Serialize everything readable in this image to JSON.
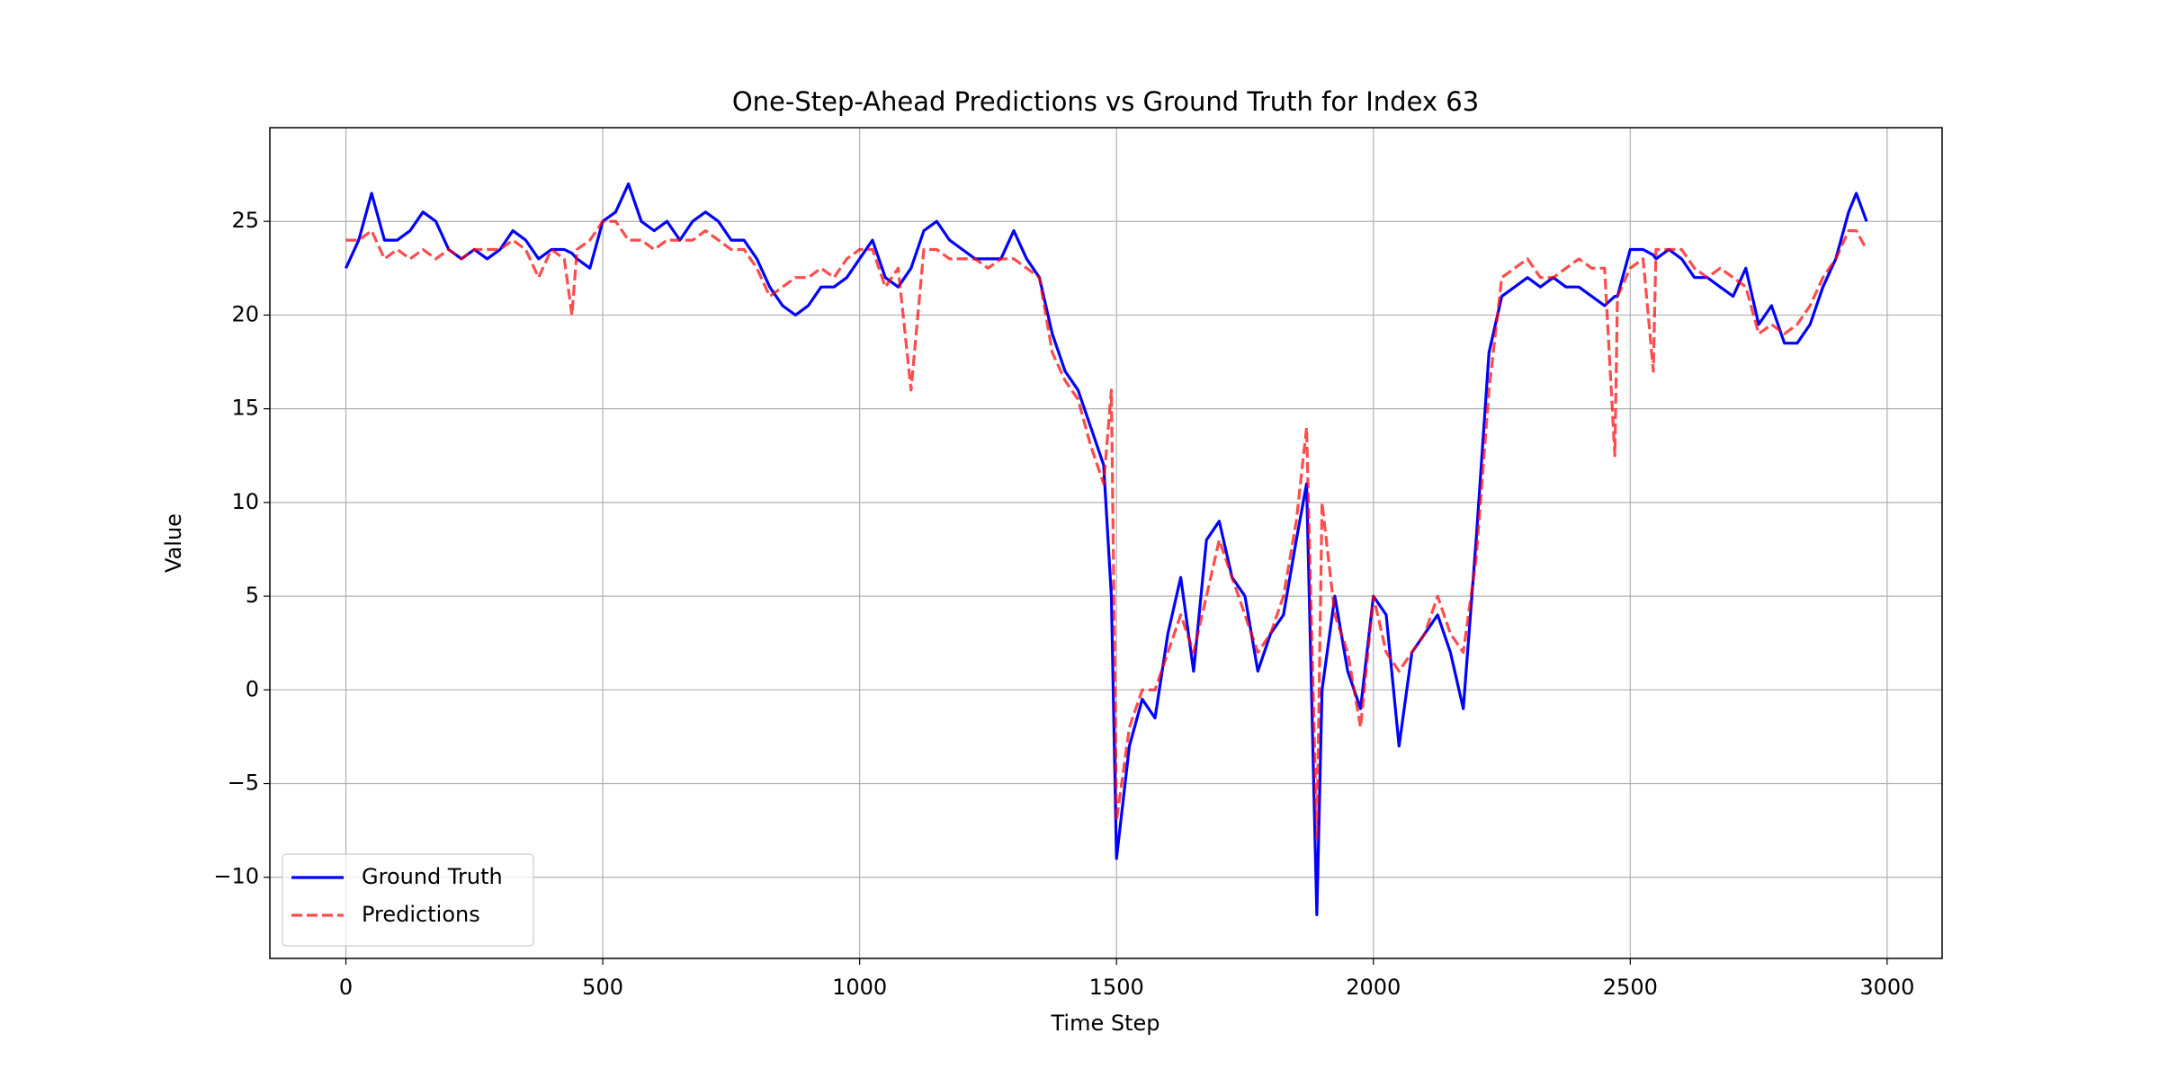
{
  "chart_data": {
    "type": "line",
    "title": "One-Step-Ahead Predictions vs Ground Truth for Index 63",
    "xlabel": "Time Step",
    "ylabel": "Value",
    "x": [
      0,
      25,
      50,
      75,
      100,
      125,
      150,
      175,
      200,
      225,
      250,
      275,
      300,
      325,
      350,
      375,
      400,
      425,
      440,
      450,
      475,
      500,
      525,
      550,
      575,
      600,
      625,
      650,
      675,
      700,
      725,
      750,
      775,
      800,
      825,
      850,
      875,
      900,
      925,
      950,
      975,
      1000,
      1025,
      1050,
      1075,
      1100,
      1125,
      1150,
      1175,
      1200,
      1225,
      1250,
      1275,
      1300,
      1325,
      1350,
      1375,
      1400,
      1425,
      1450,
      1475,
      1490,
      1500,
      1525,
      1550,
      1575,
      1600,
      1625,
      1650,
      1675,
      1700,
      1725,
      1750,
      1775,
      1800,
      1825,
      1850,
      1870,
      1890,
      1900,
      1925,
      1950,
      1975,
      2000,
      2025,
      2050,
      2075,
      2100,
      2125,
      2150,
      2175,
      2200,
      2225,
      2250,
      2275,
      2300,
      2325,
      2350,
      2375,
      2400,
      2425,
      2450,
      2470,
      2475,
      2500,
      2525,
      2545,
      2550,
      2575,
      2600,
      2625,
      2650,
      2675,
      2700,
      2725,
      2750,
      2775,
      2800,
      2825,
      2850,
      2875,
      2900,
      2925,
      2940,
      2960
    ],
    "series": [
      {
        "name": "Ground Truth",
        "color": "#0000ff",
        "dashed": false,
        "values": [
          22.5,
          24,
          26.5,
          24,
          24,
          24.5,
          25.5,
          25,
          23.5,
          23,
          23.5,
          23,
          23.5,
          24.5,
          24,
          23,
          23.5,
          23.5,
          23.3,
          23,
          22.5,
          25,
          25.5,
          27,
          25,
          24.5,
          25,
          24,
          25,
          25.5,
          25,
          24,
          24,
          23,
          21.5,
          20.5,
          20,
          20.5,
          21.5,
          21.5,
          22,
          23,
          24,
          22,
          21.5,
          22.5,
          24.5,
          25,
          24,
          23.5,
          23,
          23,
          23,
          24.5,
          23,
          22,
          19,
          17,
          16,
          14,
          12,
          5,
          -9,
          -3,
          -0.5,
          -1.5,
          3,
          6,
          1,
          8,
          9,
          6,
          5,
          1,
          3,
          4,
          8,
          11,
          -12,
          0,
          5,
          1,
          -1,
          5,
          4,
          -3,
          2,
          3,
          4,
          2,
          -1,
          8,
          18,
          21,
          21.5,
          22,
          21.5,
          22,
          21.5,
          21.5,
          21,
          20.5,
          21,
          21,
          23.5,
          23.5,
          23.2,
          23,
          23.5,
          23,
          22,
          22,
          21.5,
          21,
          22.5,
          19.5,
          20.5,
          18.5,
          18.5,
          19.5,
          21.5,
          23,
          25.5,
          26.5,
          25
        ]
      },
      {
        "name": "Predictions",
        "color": "#ff0000",
        "dashed": true,
        "values": [
          24,
          24,
          24.5,
          23,
          23.5,
          23,
          23.5,
          23,
          23.5,
          23,
          23.5,
          23.5,
          23.5,
          24,
          23.5,
          22,
          23.5,
          23,
          20,
          23.5,
          24,
          25,
          25,
          24,
          24,
          23.5,
          24,
          24,
          24,
          24.5,
          24,
          23.5,
          23.5,
          22.5,
          21,
          21.5,
          22,
          22,
          22.5,
          22,
          23,
          23.5,
          23.5,
          21.5,
          22.5,
          16,
          23.5,
          23.5,
          23,
          23,
          23,
          22.5,
          23,
          23,
          22.5,
          22,
          18,
          16.5,
          15.5,
          13,
          11,
          16,
          -7,
          -2,
          0,
          0,
          2,
          4,
          2,
          5,
          8,
          6,
          4,
          2,
          3,
          5,
          9,
          14,
          -8,
          10,
          4,
          2,
          -2,
          5,
          2,
          1,
          2,
          3,
          5,
          3,
          2,
          7,
          16,
          22,
          22.5,
          23,
          22,
          22,
          22.5,
          23,
          22.5,
          22.5,
          12.5,
          21,
          22.5,
          23,
          17,
          23.5,
          23.5,
          23.5,
          22.5,
          22,
          22.5,
          22,
          21.5,
          19,
          19.5,
          19,
          19.5,
          20.5,
          22,
          23,
          24.5,
          24.5,
          23.5
        ]
      }
    ],
    "xlim": [
      -148,
      3107
    ],
    "xticks": [
      0,
      500,
      1000,
      1500,
      2000,
      2500,
      3000
    ],
    "ylim": [
      -14.33,
      30
    ],
    "yticks": [
      {
        "value": -10,
        "label": "−10"
      },
      {
        "value": -5,
        "label": "−5"
      },
      0,
      5,
      10,
      15,
      20,
      25
    ],
    "grid": true,
    "legend": "lower left"
  }
}
